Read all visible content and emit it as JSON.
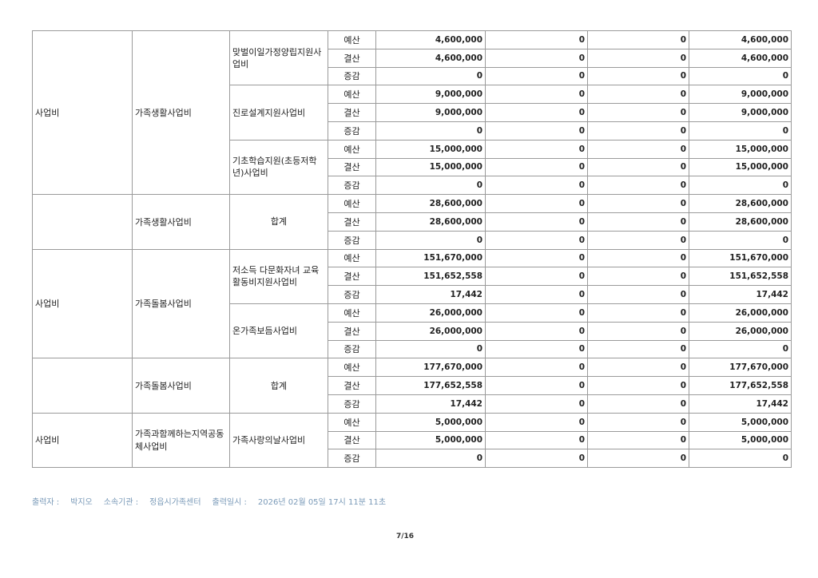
{
  "table": {
    "groups": [
      {
        "cat1": "사업비",
        "cat2": "가족생활사업비",
        "items": [
          {
            "name": "맞벌이일가정양립지원사업비",
            "rows": [
              {
                "label": "예산",
                "values": [
                  "4,600,000",
                  "0",
                  "0",
                  "4,600,000"
                ]
              },
              {
                "label": "결산",
                "values": [
                  "4,600,000",
                  "0",
                  "0",
                  "4,600,000"
                ]
              },
              {
                "label": "증감",
                "values": [
                  "0",
                  "0",
                  "0",
                  "0"
                ]
              }
            ]
          },
          {
            "name": "진로설계지원사업비",
            "rows": [
              {
                "label": "예산",
                "values": [
                  "9,000,000",
                  "0",
                  "0",
                  "9,000,000"
                ]
              },
              {
                "label": "결산",
                "values": [
                  "9,000,000",
                  "0",
                  "0",
                  "9,000,000"
                ]
              },
              {
                "label": "증감",
                "values": [
                  "0",
                  "0",
                  "0",
                  "0"
                ]
              }
            ]
          },
          {
            "name": "기초학습지원(초등저학년)사업비",
            "rows": [
              {
                "label": "예산",
                "values": [
                  "15,000,000",
                  "0",
                  "0",
                  "15,000,000"
                ]
              },
              {
                "label": "결산",
                "values": [
                  "15,000,000",
                  "0",
                  "0",
                  "15,000,000"
                ]
              },
              {
                "label": "증감",
                "values": [
                  "0",
                  "0",
                  "0",
                  "0"
                ]
              }
            ]
          }
        ]
      },
      {
        "cat1": "",
        "cat2": "가족생활사업비",
        "total": true,
        "items": [
          {
            "name": "합계",
            "rows": [
              {
                "label": "예산",
                "values": [
                  "28,600,000",
                  "0",
                  "0",
                  "28,600,000"
                ]
              },
              {
                "label": "결산",
                "values": [
                  "28,600,000",
                  "0",
                  "0",
                  "28,600,000"
                ]
              },
              {
                "label": "증감",
                "values": [
                  "0",
                  "0",
                  "0",
                  "0"
                ]
              }
            ]
          }
        ]
      },
      {
        "cat1": "사업비",
        "cat2": "가족돌봄사업비",
        "items": [
          {
            "name": "저소득 다문화자녀 교육활동비지원사업비",
            "rows": [
              {
                "label": "예산",
                "values": [
                  "151,670,000",
                  "0",
                  "0",
                  "151,670,000"
                ]
              },
              {
                "label": "결산",
                "values": [
                  "151,652,558",
                  "0",
                  "0",
                  "151,652,558"
                ]
              },
              {
                "label": "증감",
                "values": [
                  "17,442",
                  "0",
                  "0",
                  "17,442"
                ]
              }
            ]
          },
          {
            "name": "온가족보듬사업비",
            "rows": [
              {
                "label": "예산",
                "values": [
                  "26,000,000",
                  "0",
                  "0",
                  "26,000,000"
                ]
              },
              {
                "label": "결산",
                "values": [
                  "26,000,000",
                  "0",
                  "0",
                  "26,000,000"
                ]
              },
              {
                "label": "증감",
                "values": [
                  "0",
                  "0",
                  "0",
                  "0"
                ]
              }
            ]
          }
        ]
      },
      {
        "cat1": "",
        "cat2": "가족돌봄사업비",
        "total": true,
        "items": [
          {
            "name": "합계",
            "rows": [
              {
                "label": "예산",
                "values": [
                  "177,670,000",
                  "0",
                  "0",
                  "177,670,000"
                ]
              },
              {
                "label": "결산",
                "values": [
                  "177,652,558",
                  "0",
                  "0",
                  "177,652,558"
                ]
              },
              {
                "label": "증감",
                "values": [
                  "17,442",
                  "0",
                  "0",
                  "17,442"
                ]
              }
            ]
          }
        ]
      },
      {
        "cat1": "사업비",
        "cat2": "가족과함께하는지역공동체사업비",
        "items": [
          {
            "name": "가족사랑의날사업비",
            "rows": [
              {
                "label": "예산",
                "values": [
                  "5,000,000",
                  "0",
                  "0",
                  "5,000,000"
                ]
              },
              {
                "label": "결산",
                "values": [
                  "5,000,000",
                  "0",
                  "0",
                  "5,000,000"
                ]
              },
              {
                "label": "증감",
                "values": [
                  "0",
                  "0",
                  "0",
                  "0"
                ]
              }
            ]
          }
        ]
      }
    ]
  },
  "footer": {
    "printer_label": "출력자 :",
    "printer": "박지오",
    "org_label": "소속기관 :",
    "org": "정읍시가족센터",
    "time_label": "출력일시 :",
    "time": "2026년 02월 05일 17시 11분 11초"
  },
  "page_number": "7/16"
}
